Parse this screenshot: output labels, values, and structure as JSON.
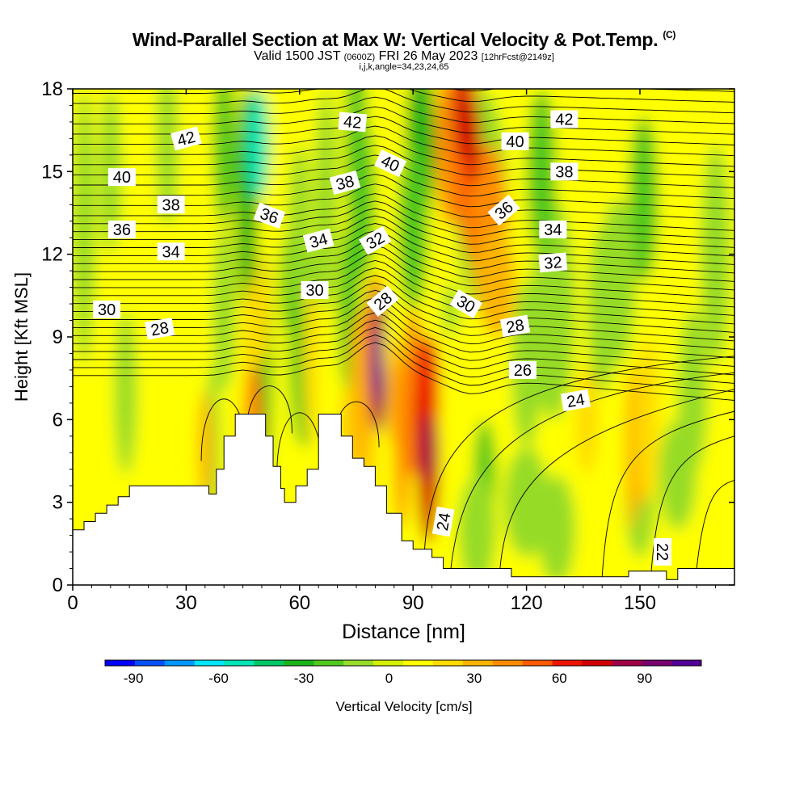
{
  "title": "Wind-Parallel Section at Max W: Vertical Velocity & Pot.Temp.",
  "title_mark": "(C)",
  "subtitle_main": "Valid 1500 JST",
  "subtitle_utc": "(0600Z)",
  "subtitle_date": "FRI 26 May 2023",
  "subtitle_fcst": "[12hrFcst@2149z]",
  "params": "i,j,k,angle=34,23,24,65",
  "chart_data": {
    "type": "heatmap",
    "xlabel": "Distance [nm]",
    "ylabel": "Height [Kft MSL]",
    "xlim": [
      0,
      175
    ],
    "ylim": [
      0,
      18
    ],
    "x_ticks": [
      "0",
      "30",
      "60",
      "90",
      "120",
      "150"
    ],
    "y_ticks": [
      "0",
      "3",
      "6",
      "9",
      "12",
      "15",
      "18"
    ],
    "colorbar": {
      "label": "Vertical Velocity [cm/s]",
      "range": [
        -100,
        110
      ],
      "step": 10,
      "tick_labels": [
        "-90",
        "-60",
        "-30",
        "0",
        "30",
        "60",
        "90"
      ],
      "colors": [
        "#0000ff",
        "#0050ff",
        "#0096ff",
        "#00e6ff",
        "#00e6b4",
        "#00c864",
        "#19b419",
        "#50c81e",
        "#96dc28",
        "#d2f000",
        "#ffff00",
        "#ffdc00",
        "#ffb400",
        "#ff8c00",
        "#ff5a00",
        "#f01400",
        "#d20000",
        "#a00046",
        "#78006e",
        "#500096"
      ]
    },
    "terrain": [
      [
        0,
        2
      ],
      [
        3,
        2
      ],
      [
        3,
        2.3
      ],
      [
        6,
        2.3
      ],
      [
        6,
        2.6
      ],
      [
        9,
        2.6
      ],
      [
        9,
        2.9
      ],
      [
        12,
        2.9
      ],
      [
        12,
        3.2
      ],
      [
        15,
        3.2
      ],
      [
        15,
        3.6
      ],
      [
        21,
        3.6
      ],
      [
        21,
        3.6
      ],
      [
        36,
        3.6
      ],
      [
        36,
        3.3
      ],
      [
        38,
        3.3
      ],
      [
        38,
        4.2
      ],
      [
        40,
        4.2
      ],
      [
        40,
        5.4
      ],
      [
        43,
        5.4
      ],
      [
        43,
        6.2
      ],
      [
        51,
        6.2
      ],
      [
        51,
        5.4
      ],
      [
        53,
        5.4
      ],
      [
        53,
        4.3
      ],
      [
        55,
        4.3
      ],
      [
        55,
        3.5
      ],
      [
        56,
        3.5
      ],
      [
        56,
        3
      ],
      [
        59,
        3
      ],
      [
        59,
        3.6
      ],
      [
        62,
        3.6
      ],
      [
        62,
        4.2
      ],
      [
        65,
        4.2
      ],
      [
        65,
        6.2
      ],
      [
        71,
        6.2
      ],
      [
        71,
        5.4
      ],
      [
        74,
        5.4
      ],
      [
        74,
        4.6
      ],
      [
        77,
        4.6
      ],
      [
        77,
        4.3
      ],
      [
        80,
        4.3
      ],
      [
        80,
        3.6
      ],
      [
        83,
        3.6
      ],
      [
        83,
        2.6
      ],
      [
        87,
        2.6
      ],
      [
        87,
        1.6
      ],
      [
        90,
        1.6
      ],
      [
        90,
        1.3
      ],
      [
        95,
        1.3
      ],
      [
        95,
        1
      ],
      [
        98,
        1
      ],
      [
        98,
        0.6
      ],
      [
        116,
        0.6
      ],
      [
        116,
        0.3
      ],
      [
        147,
        0.3
      ],
      [
        147,
        0.5
      ],
      [
        157,
        0.5
      ],
      [
        157,
        0.2
      ],
      [
        160,
        0.2
      ],
      [
        160,
        0.6
      ],
      [
        175,
        0.6
      ],
      [
        175,
        0
      ]
    ],
    "theta_labels": [
      {
        "value": "42",
        "x": 30,
        "y": 16.2,
        "rot": -15
      },
      {
        "value": "40",
        "x": 13,
        "y": 14.8,
        "rot": 0
      },
      {
        "value": "38",
        "x": 26,
        "y": 13.8,
        "rot": 0
      },
      {
        "value": "36",
        "x": 13,
        "y": 12.9,
        "rot": 0
      },
      {
        "value": "34",
        "x": 26,
        "y": 12.1,
        "rot": 0
      },
      {
        "value": "30",
        "x": 9,
        "y": 10,
        "rot": 0
      },
      {
        "value": "28",
        "x": 23,
        "y": 9.3,
        "rot": -10
      },
      {
        "value": "36",
        "x": 52,
        "y": 13.4,
        "rot": 20
      },
      {
        "value": "34",
        "x": 65,
        "y": 12.5,
        "rot": -15
      },
      {
        "value": "30",
        "x": 64,
        "y": 10.7,
        "rot": 0
      },
      {
        "value": "38",
        "x": 72,
        "y": 14.6,
        "rot": -15
      },
      {
        "value": "42",
        "x": 74,
        "y": 16.8,
        "rot": 5
      },
      {
        "value": "40",
        "x": 84,
        "y": 15.3,
        "rot": 25
      },
      {
        "value": "32",
        "x": 80,
        "y": 12.5,
        "rot": -30
      },
      {
        "value": "28",
        "x": 82,
        "y": 10.3,
        "rot": -40
      },
      {
        "value": "30",
        "x": 104,
        "y": 10.2,
        "rot": 30
      },
      {
        "value": "36",
        "x": 114,
        "y": 13.6,
        "rot": -40
      },
      {
        "value": "40",
        "x": 117,
        "y": 16.1,
        "rot": 0
      },
      {
        "value": "42",
        "x": 130,
        "y": 16.9,
        "rot": 0
      },
      {
        "value": "38",
        "x": 130,
        "y": 15.0,
        "rot": 0
      },
      {
        "value": "34",
        "x": 127,
        "y": 12.9,
        "rot": 0
      },
      {
        "value": "32",
        "x": 127,
        "y": 11.7,
        "rot": -5
      },
      {
        "value": "28",
        "x": 117,
        "y": 9.4,
        "rot": -10
      },
      {
        "value": "26",
        "x": 119,
        "y": 7.8,
        "rot": 0
      },
      {
        "value": "24",
        "x": 133,
        "y": 6.7,
        "rot": -10
      },
      {
        "value": "24",
        "x": 98,
        "y": 2.3,
        "rot": -80
      },
      {
        "value": "22",
        "x": 156,
        "y": 1.2,
        "rot": 90
      }
    ]
  }
}
